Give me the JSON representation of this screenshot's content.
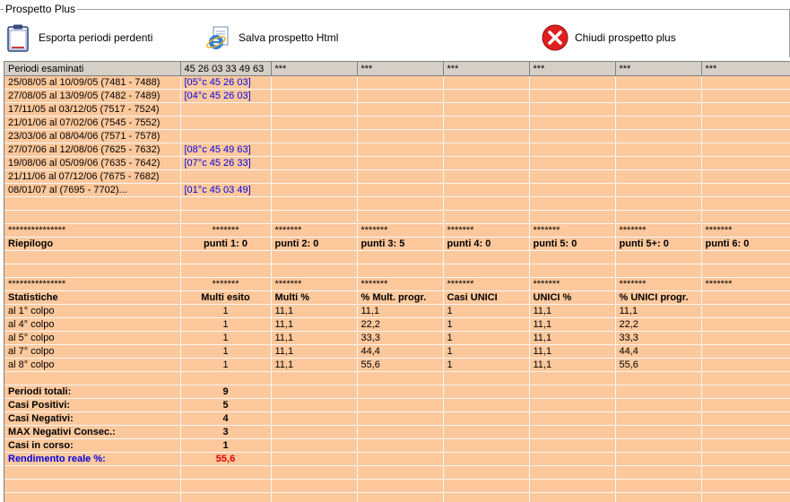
{
  "window": {
    "group_title": "Prospetto Plus"
  },
  "toolbar": {
    "export_label": "Esporta periodi perdenti",
    "save_label": "Salva prospetto Html",
    "close_label": "Chiudi prospetto plus"
  },
  "colors": {
    "grid_bg": "#fdc89c",
    "header_bg": "#d4d0c8",
    "blue": "#0000e0",
    "red": "#e00000"
  },
  "grid": {
    "headers": [
      "Periodi esaminati",
      "45 26 03 33 49 63",
      "***",
      "***",
      "***",
      "***",
      "***",
      "***"
    ],
    "periods": [
      {
        "range": "25/08/05 al 10/09/05  (7481 - 7488)",
        "hit": "[05°c 45 26 03]"
      },
      {
        "range": "27/08/05 al 13/09/05  (7482 - 7489)",
        "hit": "[04°c 45 26 03]"
      },
      {
        "range": "17/11/05 al 03/12/05  (7517 - 7524)",
        "hit": ""
      },
      {
        "range": "21/01/06 al 07/02/06  (7545 - 7552)",
        "hit": ""
      },
      {
        "range": "23/03/06 al 08/04/06  (7571 - 7578)",
        "hit": ""
      },
      {
        "range": "27/07/06 al 12/08/06  (7625 - 7632)",
        "hit": "[08°c 45 49 63]"
      },
      {
        "range": "19/08/06 al 05/09/06  (7635 - 7642)",
        "hit": "[07°c 45 26 33]"
      },
      {
        "range": "21/11/06 al 07/12/06  (7675 - 7682)",
        "hit": ""
      },
      {
        "range": "08/01/07 al   (7695 - 7702)...",
        "hit": "[01°c 45 03 49]"
      }
    ],
    "sep1": [
      "***************",
      "*******",
      "*******",
      "*******",
      "*******",
      "*******",
      "*******",
      "*******"
    ],
    "riepilogo": [
      "Riepilogo",
      "punti 1: 0",
      "punti 2: 0",
      "punti 3: 5",
      "punti 4: 0",
      "punti 5: 0",
      "punti 5+: 0",
      "punti 6: 0"
    ],
    "sep2": [
      "***************",
      "*******",
      "*******",
      "*******",
      "*******",
      "*******",
      "*******",
      "*******"
    ],
    "stats_header": [
      "Statistiche",
      "Multi esito",
      "Multi %",
      "% Mult. progr.",
      "Casi UNICI",
      "UNICI %",
      "% UNICI progr.",
      ""
    ],
    "stats": [
      [
        "al 1° colpo",
        "1",
        "11,1",
        "11,1",
        "1",
        "11,1",
        "11,1"
      ],
      [
        "al 4° colpo",
        "1",
        "11,1",
        "22,2",
        "1",
        "11,1",
        "22,2"
      ],
      [
        "al 5° colpo",
        "1",
        "11,1",
        "33,3",
        "1",
        "11,1",
        "33,3"
      ],
      [
        "al 7° colpo",
        "1",
        "11,1",
        "44,4",
        "1",
        "11,1",
        "44,4"
      ],
      [
        "al 8° colpo",
        "1",
        "11,1",
        "55,6",
        "1",
        "11,1",
        "55,6"
      ]
    ],
    "totals": [
      {
        "label": "Periodi totali:",
        "value": "9"
      },
      {
        "label": "Casi Positivi:",
        "value": "5"
      },
      {
        "label": "Casi Negativi:",
        "value": "4"
      },
      {
        "label": "MAX Negativi Consec.:",
        "value": "3"
      },
      {
        "label": "Casi in corso:",
        "value": "1"
      }
    ],
    "rendimento": {
      "label": "Rendimento reale %:",
      "value": "55,6"
    }
  }
}
